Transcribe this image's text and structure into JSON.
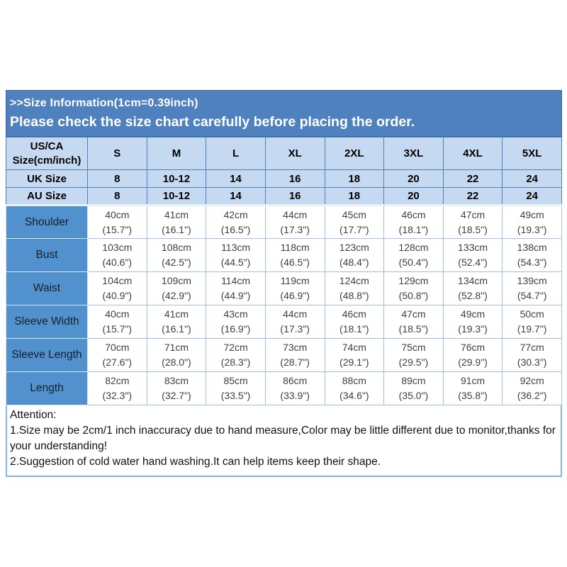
{
  "banner": {
    "line1": ">>Size Information(1cm=0.39inch)",
    "line2": "Please check the size chart carefully before placing the order."
  },
  "size_chart": {
    "corner_header": [
      "US/CA",
      "Size(cm/inch)"
    ],
    "sizes": [
      "S",
      "M",
      "L",
      "XL",
      "2XL",
      "3XL",
      "4XL",
      "5XL"
    ],
    "region_rows": [
      {
        "label": "UK Size",
        "values": [
          "8",
          "10-12",
          "14",
          "16",
          "18",
          "20",
          "22",
          "24"
        ]
      },
      {
        "label": "AU Size",
        "values": [
          "8",
          "10-12",
          "14",
          "16",
          "18",
          "20",
          "22",
          "24"
        ]
      }
    ],
    "measurement_rows": [
      {
        "label": "Shoulder",
        "cm": [
          "40cm",
          "41cm",
          "42cm",
          "44cm",
          "45cm",
          "46cm",
          "47cm",
          "49cm"
        ],
        "inch": [
          "(15.7\")",
          "(16.1\")",
          "(16.5\")",
          "(17.3\")",
          "(17.7\")",
          "(18.1\")",
          "(18.5\")",
          "(19.3\")"
        ]
      },
      {
        "label": "Bust",
        "cm": [
          "103cm",
          "108cm",
          "113cm",
          "118cm",
          "123cm",
          "128cm",
          "133cm",
          "138cm"
        ],
        "inch": [
          "(40.6\")",
          "(42.5\")",
          "(44.5\")",
          "(46.5\")",
          "(48.4\")",
          "(50.4\")",
          "(52.4\")",
          "(54.3\")"
        ]
      },
      {
        "label": "Waist",
        "cm": [
          "104cm",
          "109cm",
          "114cm",
          "119cm",
          "124cm",
          "129cm",
          "134cm",
          "139cm"
        ],
        "inch": [
          "(40.9\")",
          "(42.9\")",
          "(44.9\")",
          "(46.9\")",
          "(48.8\")",
          "(50.8\")",
          "(52.8\")",
          "(54.7\")"
        ]
      },
      {
        "label": "Sleeve Width",
        "cm": [
          "40cm",
          "41cm",
          "43cm",
          "44cm",
          "46cm",
          "47cm",
          "49cm",
          "50cm"
        ],
        "inch": [
          "(15.7\")",
          "(16.1\")",
          "(16.9\")",
          "(17.3\")",
          "(18.1\")",
          "(18.5\")",
          "(19.3\")",
          "(19.7\")"
        ]
      },
      {
        "label": "Sleeve Length",
        "cm": [
          "70cm",
          "71cm",
          "72cm",
          "73cm",
          "74cm",
          "75cm",
          "76cm",
          "77cm"
        ],
        "inch": [
          "(27.6\")",
          "(28.0\")",
          "(28.3\")",
          "(28.7\")",
          "(29.1\")",
          "(29.5\")",
          "(29.9\")",
          "(30.3\")"
        ]
      },
      {
        "label": "Length",
        "cm": [
          "82cm",
          "83cm",
          "85cm",
          "86cm",
          "88cm",
          "89cm",
          "91cm",
          "92cm"
        ],
        "inch": [
          "(32.3\")",
          "(32.7\")",
          "(33.5\")",
          "(33.9\")",
          "(34.6\")",
          "(35.0\")",
          "(35.8\")",
          "(36.2\")"
        ]
      }
    ]
  },
  "attention": {
    "title": "Attention:",
    "notes": [
      "1.Size may be 2cm/1 inch inaccuracy due to hand measure,Color may be little different due to monitor,thanks for your understanding!",
      "2.Suggestion of cold water hand washing.It can help items keep their shape."
    ]
  },
  "colors": {
    "banner_blue": "#4e81bd",
    "banner_border": "#3c6899",
    "header_light_blue": "#c5d9f1",
    "header_border_blue": "#4f81bd",
    "label_blue": "#5191ce",
    "cell_border_blue": "#a2c1e2",
    "attention_border_blue": "#8cb4e2"
  }
}
